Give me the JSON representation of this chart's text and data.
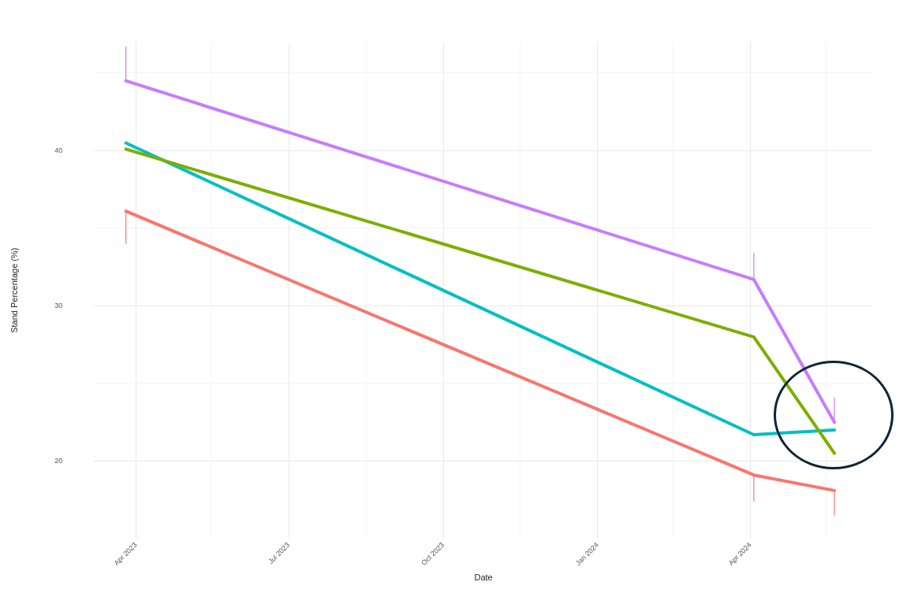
{
  "chart_data": {
    "type": "line",
    "xlabel": "Date",
    "ylabel": "Stand Percentage (%)",
    "x": [
      "2023-03-26",
      "2024-04-03",
      "2024-05-21"
    ],
    "series": [
      {
        "color": "#c77cff",
        "values": [
          44.5,
          31.7,
          22.5
        ],
        "errors": [
          [
            44.5,
            46.7
          ],
          [
            31.7,
            33.4
          ],
          [
            22.5,
            24.1
          ]
        ]
      },
      {
        "color": "#7cae00",
        "values": [
          40.1,
          28.0,
          20.5
        ]
      },
      {
        "color": "#00bfc4",
        "values": [
          40.5,
          21.7,
          22.0
        ]
      },
      {
        "color": "#f8766d",
        "values": [
          36.1,
          19.1,
          18.1
        ],
        "errors": [
          [
            34.0,
            36.1
          ],
          [
            17.4,
            19.1
          ],
          [
            16.5,
            18.1
          ]
        ]
      }
    ],
    "xlim": [
      "2023-03-07",
      "2024-06-13"
    ],
    "xticks": [
      {
        "value": "2023-04-01",
        "label": "Apr 2023"
      },
      {
        "value": "2023-05-16",
        "label": null
      },
      {
        "value": "2023-07-01",
        "label": "Jul 2023"
      },
      {
        "value": "2023-08-16",
        "label": null
      },
      {
        "value": "2023-10-01",
        "label": "Oct 2023"
      },
      {
        "value": "2023-11-16",
        "label": null
      },
      {
        "value": "2024-01-01",
        "label": "Jan 2024"
      },
      {
        "value": "2024-02-15",
        "label": null
      },
      {
        "value": "2024-04-01",
        "label": "Apr 2024"
      },
      {
        "value": "2024-05-16",
        "label": null
      }
    ],
    "ylim": [
      15,
      47
    ],
    "yticks": [
      {
        "value": 20,
        "label": "20"
      },
      {
        "value": 25,
        "label": null
      },
      {
        "value": 30,
        "label": "30"
      },
      {
        "value": 35,
        "label": null
      },
      {
        "value": 40,
        "label": "40"
      },
      {
        "value": 45,
        "label": null
      }
    ],
    "grid": true,
    "legend": false,
    "marker": "none",
    "line_style": "solid"
  }
}
